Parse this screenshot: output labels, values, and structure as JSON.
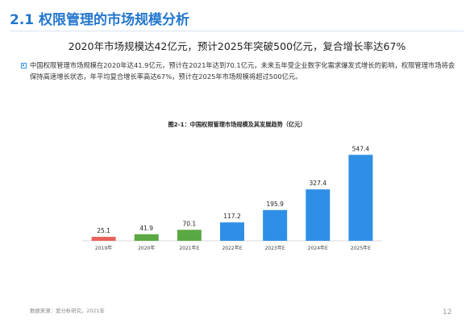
{
  "page": {
    "title": "2.1 权限管理的市场规模分析",
    "headline": "2020年市场规模达42亿元，预计2025年突破500亿元，复合增长率达67%",
    "paragraph": "中国权限管理市场规模在2020年达41.9亿元，预计在2021年达到70.1亿元，未来五年受企业数字化需求爆发式增长的影响，权限管理市场将会保持高速增长状态，年平均复合增长率高达67%，预计在2025年市场规模将超过500亿元。",
    "source": "数据来源：爱分析研究，2021年",
    "page_number": "12"
  },
  "chart_data": {
    "type": "bar",
    "title": "图2-1：中国权限管理市场规模及其发展趋势（亿元）",
    "categories": [
      "2019年",
      "2020年",
      "2021年E",
      "2022年E",
      "2023年E",
      "2024年E",
      "2025年E"
    ],
    "values": [
      25.1,
      41.9,
      70.1,
      117.2,
      195.9,
      327.4,
      547.4
    ],
    "value_labels": [
      "25.1",
      "41.9",
      "70.1",
      "117.2",
      "195.9",
      "327.4",
      "547.4"
    ],
    "colors": [
      "#e8615a",
      "#5aa844",
      "#5aa844",
      "#2f8fe6",
      "#2f8fe6",
      "#2f8fe6",
      "#2f8fe6"
    ],
    "xlabel": "",
    "ylabel": "",
    "ylim": [
      0,
      600
    ],
    "grid": false,
    "legend": "none"
  }
}
